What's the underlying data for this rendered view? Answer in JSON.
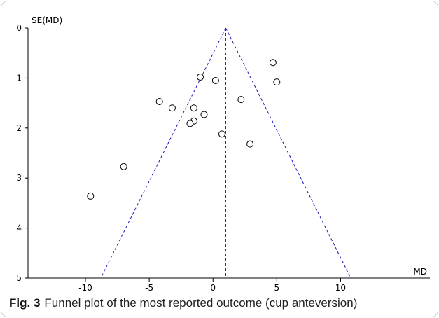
{
  "caption": {
    "label": "Fig. 3",
    "text": "Funnel plot of the most reported outcome (cup anteversion)"
  },
  "chart_data": {
    "type": "scatter",
    "title": "",
    "xlabel": "MD",
    "ylabel": "SE(MD)",
    "xlim": [
      -14.5,
      17
    ],
    "ylim": [
      0,
      5
    ],
    "y_inverted": true,
    "x_ticks": [
      -10,
      -5,
      0,
      5,
      10
    ],
    "y_ticks": [
      0,
      1,
      2,
      3,
      4,
      5
    ],
    "x_tick_labels": [
      "-10",
      "-5",
      "0",
      "5",
      "10"
    ],
    "y_tick_labels": [
      "0",
      "1",
      "2",
      "3",
      "4",
      "5"
    ],
    "grid": false,
    "funnel": {
      "pooled_md": 1.0,
      "se_max": 5,
      "multiplier": 1.96,
      "line_style": "dashed",
      "color": "#1a1ab8"
    },
    "points": [
      {
        "x": 4.7,
        "y": 0.69
      },
      {
        "x": 5.0,
        "y": 1.08
      },
      {
        "x": -1.0,
        "y": 0.98
      },
      {
        "x": 0.2,
        "y": 1.05
      },
      {
        "x": 2.2,
        "y": 1.43
      },
      {
        "x": -4.2,
        "y": 1.47
      },
      {
        "x": -3.2,
        "y": 1.6
      },
      {
        "x": -1.5,
        "y": 1.6
      },
      {
        "x": -0.7,
        "y": 1.73
      },
      {
        "x": -1.5,
        "y": 1.86
      },
      {
        "x": -1.8,
        "y": 1.91
      },
      {
        "x": 0.7,
        "y": 2.12
      },
      {
        "x": 2.9,
        "y": 2.32
      },
      {
        "x": -7.0,
        "y": 2.77
      },
      {
        "x": -9.6,
        "y": 3.36
      }
    ]
  }
}
